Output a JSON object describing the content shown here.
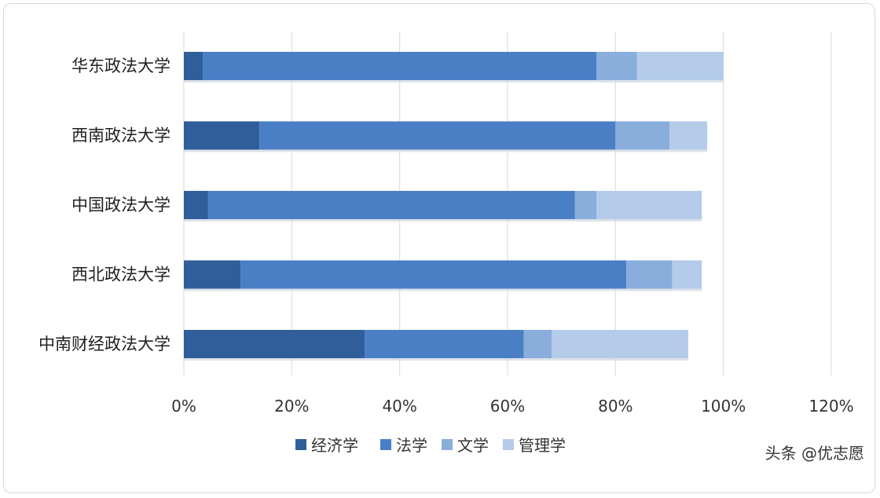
{
  "colors": {
    "经济学": "#2f5e9a",
    "法学": "#4a7fc6",
    "文学": "#8aaedc",
    "管理学": "#b4cbea",
    "grid": "#d9d9d9"
  },
  "watermark": "头条 @优志愿",
  "chart_data": {
    "type": "bar",
    "orientation": "horizontal",
    "stacked": true,
    "categories": [
      "华东政法大学",
      "西南政法大学",
      "中国政法大学",
      "西北政法大学",
      "中南财经政法大学"
    ],
    "series": [
      {
        "name": "经济学",
        "values": [
          3.5,
          14,
          4.5,
          10.5,
          33.5
        ]
      },
      {
        "name": "法学",
        "values": [
          73,
          66,
          68,
          71.5,
          29.5
        ]
      },
      {
        "name": "文学",
        "values": [
          7.5,
          10,
          4,
          8.5,
          5.2
        ]
      },
      {
        "name": "管理学",
        "values": [
          16,
          7,
          19.5,
          5.5,
          25.3
        ]
      }
    ],
    "xlim": [
      0,
      120
    ],
    "xticks": [
      0,
      20,
      40,
      60,
      80,
      100,
      120
    ],
    "xtick_labels": [
      "0%",
      "20%",
      "40%",
      "60%",
      "80%",
      "100%",
      "120%"
    ],
    "grid": true,
    "legend_position": "bottom",
    "title": "",
    "xlabel": "",
    "ylabel": ""
  }
}
